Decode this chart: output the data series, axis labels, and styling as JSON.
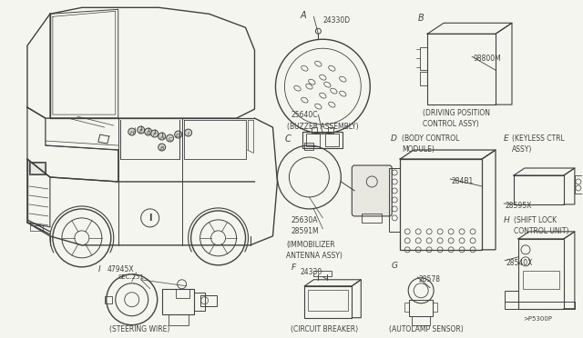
{
  "bg_color": "#f5f5f0",
  "line_color": "#404040",
  "text_color": "#404040",
  "figsize": [
    6.4,
    3.72
  ],
  "dpi": 100,
  "components": {
    "A": {
      "label": "A",
      "part": "24330D",
      "sub": "25640C",
      "desc": "(BUZZER ASSEMBLY)"
    },
    "B": {
      "label": "B",
      "part": "98800M",
      "desc1": "(DRIVING POSITION",
      "desc2": "CONTROL ASSY)"
    },
    "C": {
      "label": "C",
      "part1": "25630A",
      "part2": "28591M",
      "desc1": "(IMMOBILIZER",
      "desc2": "ANTENNA ASSY)"
    },
    "D": {
      "label": "D",
      "part": "284B1",
      "desc1": "(BODY CONTROL",
      "desc2": "MODULE)"
    },
    "E": {
      "label": "E",
      "part": "28595X",
      "desc1": "(KEYLESS CTRL",
      "desc2": "ASSY)"
    },
    "F": {
      "label": "F",
      "part": "24330",
      "desc": "(CIRCUIT BREAKER)"
    },
    "G": {
      "label": "G",
      "part": "28578",
      "desc": "(AUTOLAMP SENSOR)"
    },
    "H": {
      "label": "H",
      "part": "28540X",
      "desc1": "(SHIFT LOCK",
      "desc2": "CONTROL UNIT)"
    },
    "I": {
      "label": "I",
      "part": "47945X",
      "sub": "SEC.251",
      "desc": "(STEERING WIRE)"
    }
  },
  "refnum": ">P5300P"
}
